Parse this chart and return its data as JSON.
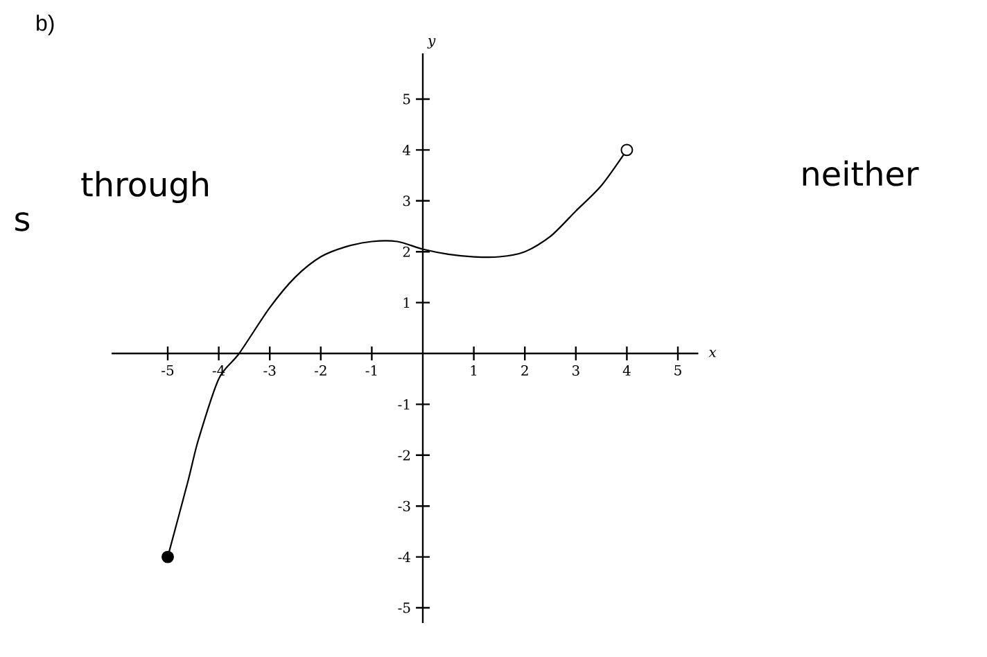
{
  "chart_data": {
    "type": "line",
    "title": "b)",
    "xlabel": "x",
    "ylabel": "y",
    "annotations": [
      "through",
      "s",
      "neither"
    ],
    "xlim": [
      -6.1,
      5.4
    ],
    "ylim": [
      -5.3,
      5.9
    ],
    "xticks": [
      -5,
      -4,
      -3,
      -2,
      -1,
      1,
      2,
      3,
      4,
      5
    ],
    "yticks": [
      -5,
      -4,
      -3,
      -2,
      -1,
      1,
      2,
      3,
      4,
      5
    ],
    "grid": false,
    "series": [
      {
        "color": "#000000",
        "line_style": "solid",
        "marker": "none",
        "x": [
          -5,
          -4.6,
          -4.4,
          -4,
          -3.6,
          -3,
          -2.5,
          -2,
          -1.5,
          -1,
          -0.5,
          0,
          0.5,
          1,
          1.5,
          2,
          2.5,
          3,
          3.5,
          4
        ],
        "values": [
          -4,
          -2.5,
          -1.7,
          -0.5,
          0,
          0.9,
          1.5,
          1.9,
          2.1,
          2.2,
          2.2,
          2.05,
          1.95,
          1.9,
          1.9,
          2.0,
          2.3,
          2.8,
          3.3,
          4
        ]
      },
      {
        "type": "scatter",
        "color": "#000000",
        "marker": "circle",
        "x": [
          -5
        ],
        "values": [
          -4
        ]
      },
      {
        "type": "scatter",
        "color": "#ffffff",
        "marker": "circle",
        "x": [
          4
        ],
        "values": [
          4
        ]
      }
    ]
  }
}
